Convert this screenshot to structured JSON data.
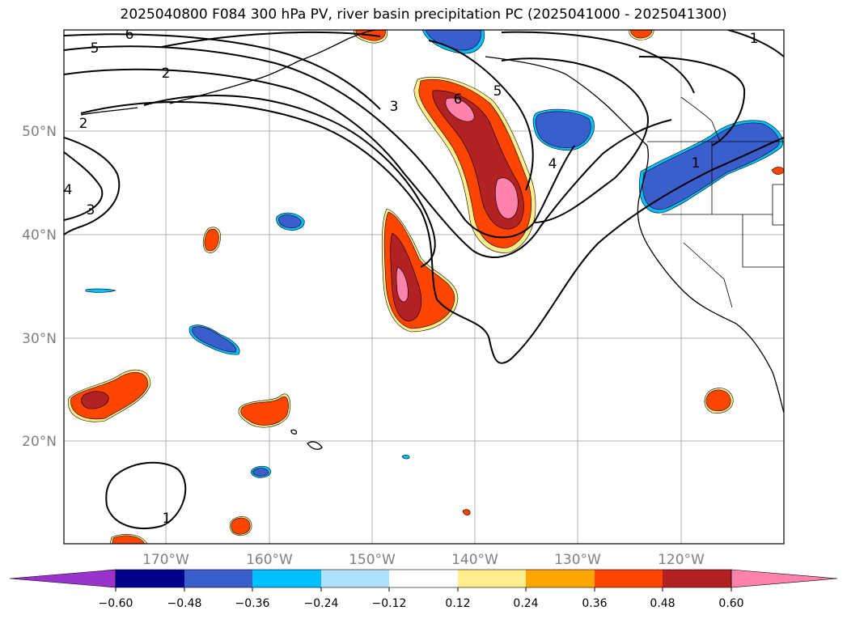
{
  "title": "2025040800 F084 300 hPa PV, river basin precipitation PC (2025041000 - 2025041300)",
  "lat_labels": [
    "50°N",
    "40°N",
    "30°N",
    "20°N"
  ],
  "lon_labels": [
    "170°W",
    "160°W",
    "150°W",
    "140°W",
    "130°W",
    "120°W"
  ],
  "contour_labels": [
    "6",
    "5",
    "2",
    "2",
    "4",
    "3",
    "3",
    "5",
    "6",
    "4",
    "1",
    "1",
    "1"
  ],
  "colorbar": {
    "tick_labels": [
      "−0.60",
      "−0.48",
      "−0.36",
      "−0.24",
      "−0.12",
      "0.12",
      "0.24",
      "0.36",
      "0.48",
      "0.60"
    ],
    "colors": [
      "#9933cc",
      "#00008b",
      "#3a5fcd",
      "#00bfff",
      "#b0e2ff",
      "#ffffff",
      "#ffec8b",
      "#ffa500",
      "#ff4500",
      "#b22222",
      "#ff82ab"
    ]
  }
}
